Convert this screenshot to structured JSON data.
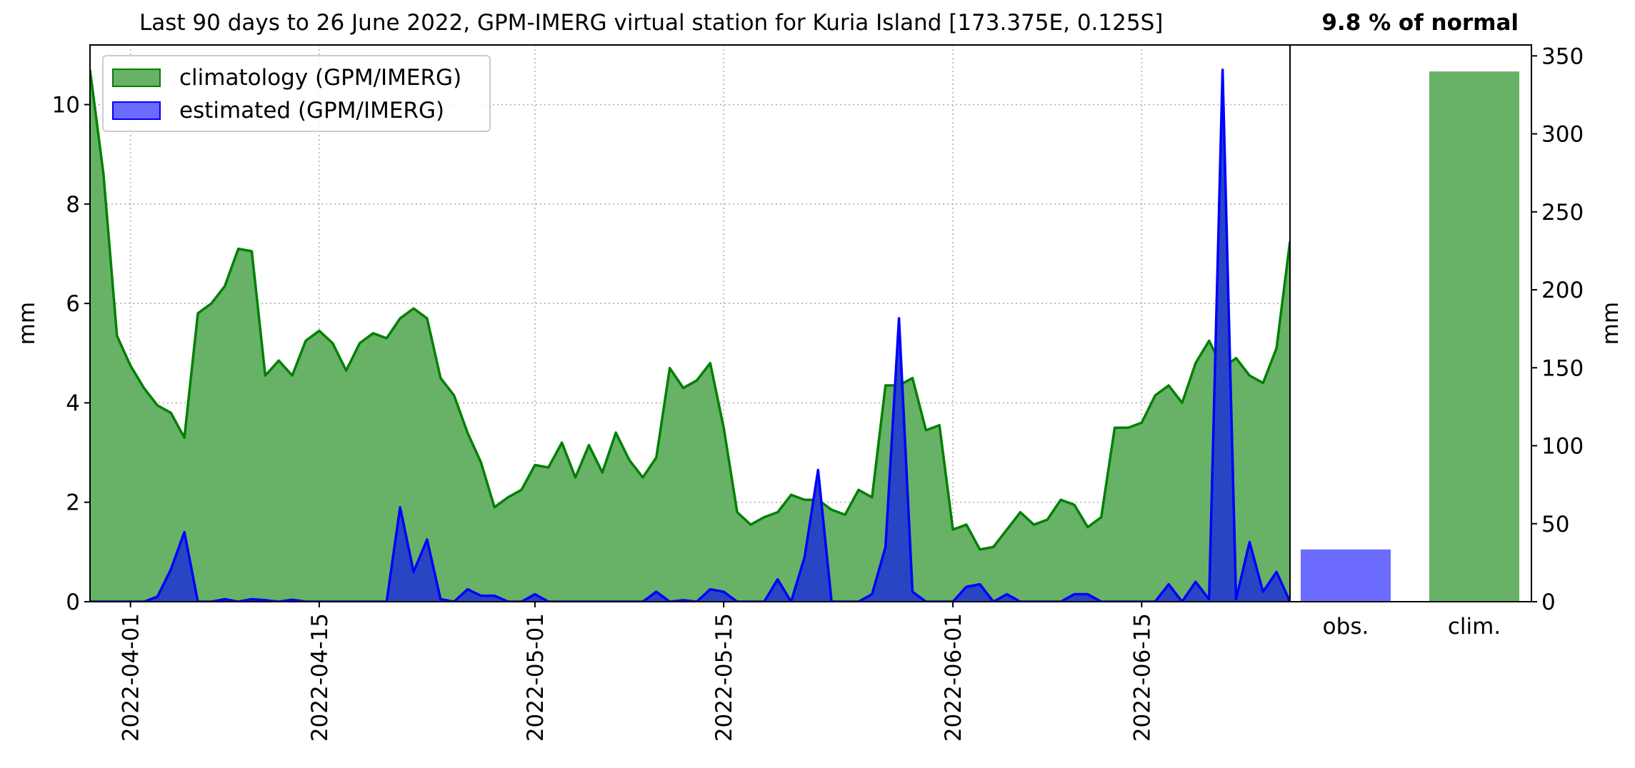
{
  "header": {
    "title": "Last 90 days to 26 June 2022, GPM-IMERG virtual station for Kuria Island [173.375E, 0.125S]",
    "percent_label": "9.8 % of normal"
  },
  "legend": {
    "items": [
      {
        "label": "climatology (GPM/IMERG)",
        "fill": "#67b267",
        "stroke": "#008000"
      },
      {
        "label": "estimated (GPM/IMERG)",
        "fill": "#6b6bff",
        "stroke": "#0000ff"
      }
    ]
  },
  "colors": {
    "climatology_fill": "#67b267",
    "climatology_line": "#008000",
    "estimated_fill": "#2a45c4",
    "estimated_line": "#0000ff",
    "obs_bar": "#6b6bff",
    "clim_bar": "#67b267",
    "grid": "#b0b0b0"
  },
  "chart_data": [
    {
      "type": "area",
      "ylabel": "mm",
      "xlim": [
        "2022-03-29",
        "2022-06-26"
      ],
      "ylim": [
        0,
        11.2
      ],
      "grid": true,
      "legend_position": "top-left",
      "x_ticks": [
        "2022-04-01",
        "2022-04-15",
        "2022-05-01",
        "2022-05-15",
        "2022-06-01",
        "2022-06-15"
      ],
      "y_ticks": [
        0,
        2,
        4,
        6,
        8,
        10
      ],
      "series": [
        {
          "name": "climatology (GPM/IMERG)",
          "start_date": "2022-03-29",
          "values": [
            10.7,
            8.6,
            5.35,
            4.75,
            4.3,
            3.95,
            3.8,
            3.3,
            5.8,
            6.0,
            6.35,
            7.1,
            7.05,
            4.55,
            4.85,
            4.55,
            5.25,
            5.45,
            5.2,
            4.65,
            5.2,
            5.4,
            5.3,
            5.7,
            5.9,
            5.7,
            4.5,
            4.15,
            3.4,
            2.8,
            1.9,
            2.1,
            2.25,
            2.75,
            2.7,
            3.2,
            2.5,
            3.15,
            2.6,
            3.4,
            2.85,
            2.5,
            2.9,
            4.7,
            4.3,
            4.45,
            4.8,
            3.5,
            1.8,
            1.55,
            1.7,
            1.8,
            2.15,
            2.05,
            2.05,
            1.85,
            1.75,
            2.25,
            2.1,
            4.35,
            4.35,
            4.5,
            3.45,
            3.55,
            1.45,
            1.55,
            1.05,
            1.1,
            1.45,
            1.8,
            1.55,
            1.65,
            2.05,
            1.95,
            1.5,
            1.7,
            3.5,
            3.5,
            3.6,
            4.15,
            4.35,
            4.0,
            4.8,
            5.25,
            4.7,
            4.9,
            4.55,
            4.4,
            5.1,
            7.25
          ]
        },
        {
          "name": "estimated (GPM/IMERG)",
          "start_date": "2022-03-29",
          "values": [
            0,
            0,
            0,
            0,
            0,
            0.1,
            0.65,
            1.4,
            0,
            0,
            0.05,
            0,
            0.05,
            0.03,
            0,
            0.04,
            0,
            0,
            0,
            0,
            0,
            0,
            0,
            1.9,
            0.6,
            1.25,
            0.05,
            0,
            0.25,
            0.12,
            0.12,
            0,
            0,
            0.15,
            0,
            0,
            0,
            0,
            0,
            0,
            0,
            0,
            0.2,
            0,
            0.03,
            0,
            0.25,
            0.2,
            0,
            0,
            0,
            0.45,
            0,
            0.9,
            2.65,
            0,
            0,
            0,
            0.15,
            1.1,
            5.7,
            0.2,
            0,
            0,
            0,
            0.3,
            0.35,
            0,
            0.15,
            0,
            0,
            0,
            0,
            0.15,
            0.15,
            0,
            0,
            0,
            0,
            0,
            0.35,
            0,
            0.4,
            0.05,
            10.7,
            0.05,
            1.2,
            0.2,
            0.6,
            0
          ]
        }
      ]
    },
    {
      "type": "bar",
      "ylabel": "mm",
      "categories": [
        "obs.",
        "clim."
      ],
      "values": [
        33.5,
        340.0
      ],
      "colors": [
        "#6b6bff",
        "#67b267"
      ],
      "ylim": [
        0,
        357
      ],
      "y_ticks": [
        0,
        50,
        100,
        150,
        200,
        250,
        300,
        350
      ],
      "grid": false
    }
  ]
}
